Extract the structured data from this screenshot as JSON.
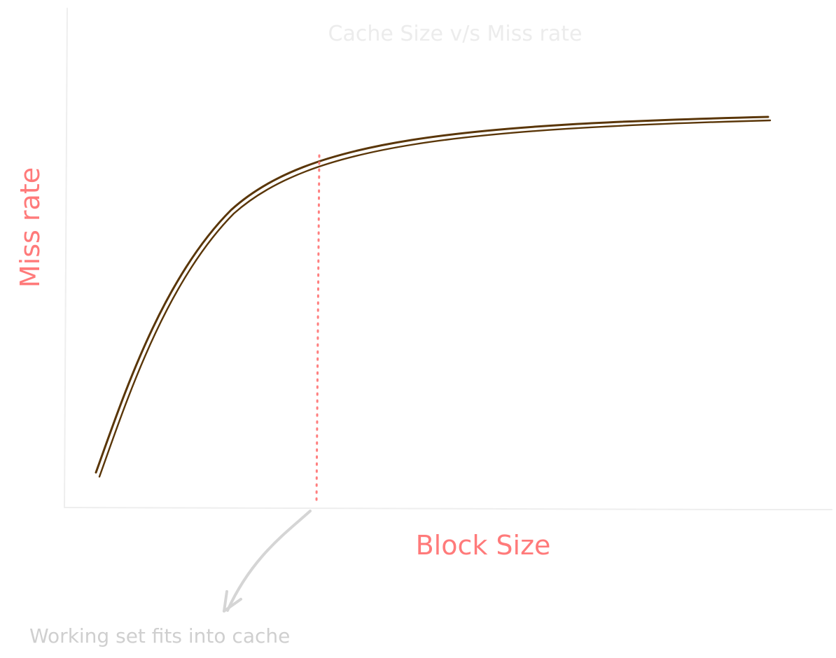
{
  "diagram": {
    "title": "Cache Size v/s Miss rate",
    "x_axis_label": "Block Size",
    "y_axis_label": "Miss rate",
    "annotation": "Working set fits into cache"
  },
  "colors": {
    "curve": "#5a3608",
    "axis": "#eeeeee",
    "axis_label": "#ff7a7a",
    "marker_line": "#ff8080",
    "title": "#ececec",
    "annotation_text": "#cfcfcf",
    "annotation_arrow": "#d5d5d5"
  }
}
